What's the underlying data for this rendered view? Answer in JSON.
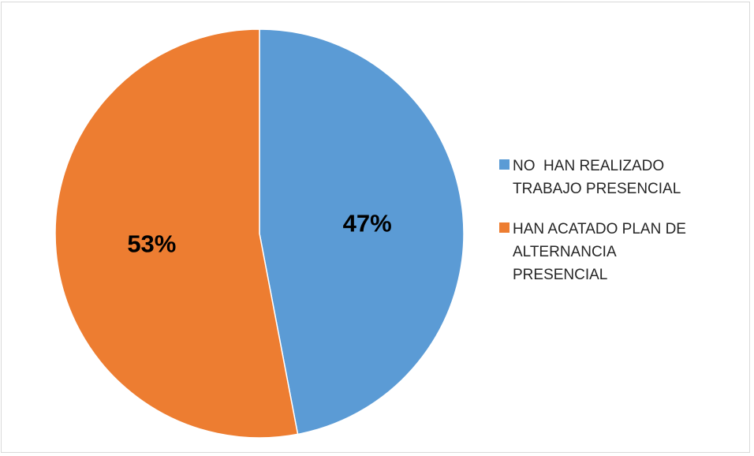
{
  "chart_data": {
    "type": "pie",
    "title": "",
    "categories": [
      "NO  HAN REALIZADO TRABAJO PRESENCIAL",
      "HAN ACATADO PLAN DE ALTERNANCIA PRESENCIAL"
    ],
    "values": [
      47,
      53
    ],
    "data_labels": [
      "47%",
      "53%"
    ],
    "colors": [
      "#5b9bd5",
      "#ed7d31"
    ],
    "start_angle_deg": 0,
    "direction": "clockwise",
    "legend_position": "right"
  }
}
